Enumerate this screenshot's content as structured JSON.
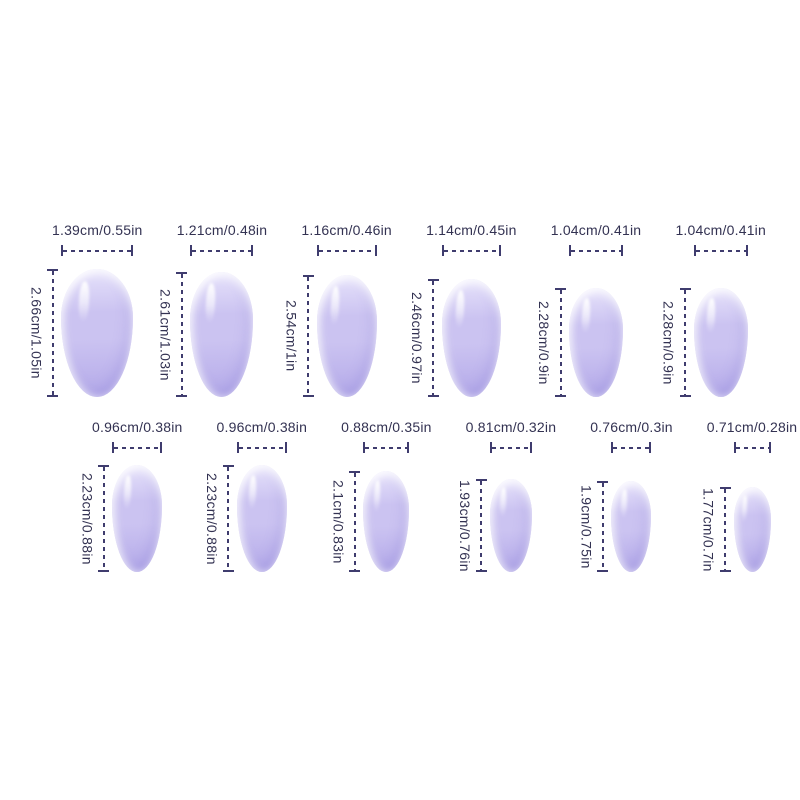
{
  "page": {
    "background": "#ffffff",
    "label_color": "#333252",
    "dimension_color": "#3f3c6e",
    "nail_base_color": "#cbc3f1",
    "nail_light_color": "#e7e3fb",
    "nail_deep_color": "#b7adea"
  },
  "size_chart": {
    "rows": [
      {
        "nails": [
          {
            "width_label": "1.39cm/0.55in",
            "height_label": "2.66cm/1.05in",
            "width_cm": 1.39,
            "height_cm": 2.66
          },
          {
            "width_label": "1.21cm/0.48in",
            "height_label": "2.61cm/1.03in",
            "width_cm": 1.21,
            "height_cm": 2.61
          },
          {
            "width_label": "1.16cm/0.46in",
            "height_label": "2.54cm/1in",
            "width_cm": 1.16,
            "height_cm": 2.54
          },
          {
            "width_label": "1.14cm/0.45in",
            "height_label": "2.46cm/0.97in",
            "width_cm": 1.14,
            "height_cm": 2.46
          },
          {
            "width_label": "1.04cm/0.41in",
            "height_label": "2.28cm/0.9in",
            "width_cm": 1.04,
            "height_cm": 2.28
          },
          {
            "width_label": "1.04cm/0.41in",
            "height_label": "2.28cm/0.9in",
            "width_cm": 1.04,
            "height_cm": 2.28
          }
        ]
      },
      {
        "nails": [
          {
            "width_label": "0.96cm/0.38in",
            "height_label": "2.23cm/0.88in",
            "width_cm": 0.96,
            "height_cm": 2.23
          },
          {
            "width_label": "0.96cm/0.38in",
            "height_label": "2.23cm/0.88in",
            "width_cm": 0.96,
            "height_cm": 2.23
          },
          {
            "width_label": "0.88cm/0.35in",
            "height_label": "2.1cm/0.83in",
            "width_cm": 0.88,
            "height_cm": 2.1
          },
          {
            "width_label": "0.81cm/0.32in",
            "height_label": "1.93cm/0.76in",
            "width_cm": 0.81,
            "height_cm": 1.93
          },
          {
            "width_label": "0.76cm/0.3in",
            "height_label": "1.9cm/0.75in",
            "width_cm": 0.76,
            "height_cm": 1.9
          },
          {
            "width_label": "0.71cm/0.28in",
            "height_label": "1.77cm/0.7in",
            "width_cm": 0.71,
            "height_cm": 1.77
          }
        ]
      }
    ]
  }
}
